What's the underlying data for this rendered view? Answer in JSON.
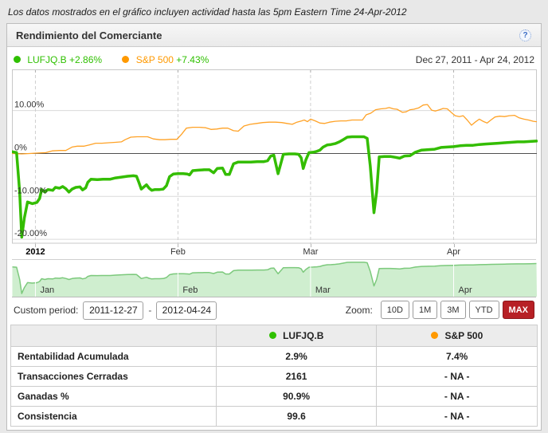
{
  "note": "Los datos mostrados en el gráfico incluyen actividad hasta las 5pm Eastern Time 24-Apr-2012",
  "panel": {
    "title": "Rendimiento del Comerciante",
    "help_icon": "?"
  },
  "colors": {
    "green": "#2fc000",
    "orange": "#ff9900",
    "line_green": "#33bd00",
    "line_orange": "#ffa226",
    "nav_fill": "#cfeecf",
    "nav_line": "#7cc97c",
    "active_button_red": "#b72025"
  },
  "legend": {
    "series1": {
      "label": "LUFJQ.B",
      "change": "+2.86%"
    },
    "series2": {
      "label": "S&P 500",
      "change": "+7.43%"
    },
    "date_range": "Dec 27, 2011 - Apr 24, 2012"
  },
  "chart_data": {
    "type": "line",
    "title": "Rendimiento del Comerciante",
    "x_axis": {
      "start": "Dec 27, 2011",
      "end": "Apr 24, 2012",
      "ticks": [
        {
          "label": "2012",
          "f": 0.044,
          "bold": true
        },
        {
          "label": "Feb",
          "f": 0.316
        },
        {
          "label": "Mar",
          "f": 0.569
        },
        {
          "label": "Apr",
          "f": 0.842
        }
      ]
    },
    "y_axis": {
      "unit": "%",
      "max": 19.6,
      "min": -21.1,
      "ticks": [
        {
          "label": "10.00%",
          "value": 10
        },
        {
          "label": "0%",
          "value": 0
        },
        {
          "label": "-10.00%",
          "value": -10
        },
        {
          "label": "-20.00%",
          "value": -20
        }
      ]
    },
    "series": [
      {
        "name": "LUFJQ.B",
        "color": "#33bd00",
        "width": 3.5,
        "final_return_pct": 2.86,
        "points": [
          [
            0.0,
            0.4
          ],
          [
            0.008,
            0.2
          ],
          [
            0.014,
            -9.0
          ],
          [
            0.018,
            -19.5
          ],
          [
            0.023,
            -15.0
          ],
          [
            0.029,
            -11.3
          ],
          [
            0.038,
            -11.7
          ],
          [
            0.047,
            -11.4
          ],
          [
            0.052,
            -10.5
          ],
          [
            0.056,
            -8.4
          ],
          [
            0.062,
            -9.0
          ],
          [
            0.068,
            -8.4
          ],
          [
            0.077,
            -8.6
          ],
          [
            0.082,
            -7.9
          ],
          [
            0.09,
            -8.1
          ],
          [
            0.096,
            -7.7
          ],
          [
            0.102,
            -8.2
          ],
          [
            0.108,
            -9.0
          ],
          [
            0.114,
            -8.3
          ],
          [
            0.121,
            -7.9
          ],
          [
            0.129,
            -7.8
          ],
          [
            0.134,
            -8.5
          ],
          [
            0.14,
            -8.0
          ],
          [
            0.144,
            -6.7
          ],
          [
            0.15,
            -6.0
          ],
          [
            0.162,
            -6.1
          ],
          [
            0.174,
            -6.0
          ],
          [
            0.187,
            -6.0
          ],
          [
            0.197,
            -5.7
          ],
          [
            0.208,
            -5.5
          ],
          [
            0.22,
            -5.3
          ],
          [
            0.231,
            -5.2
          ],
          [
            0.237,
            -5.3
          ],
          [
            0.241,
            -6.6
          ],
          [
            0.246,
            -8.3
          ],
          [
            0.252,
            -7.7
          ],
          [
            0.256,
            -7.3
          ],
          [
            0.261,
            -8.1
          ],
          [
            0.266,
            -8.6
          ],
          [
            0.272,
            -8.4
          ],
          [
            0.281,
            -8.4
          ],
          [
            0.288,
            -8.3
          ],
          [
            0.294,
            -7.5
          ],
          [
            0.3,
            -5.4
          ],
          [
            0.307,
            -4.8
          ],
          [
            0.316,
            -4.7
          ],
          [
            0.326,
            -4.7
          ],
          [
            0.334,
            -4.8
          ],
          [
            0.338,
            -5.0
          ],
          [
            0.344,
            -4.0
          ],
          [
            0.355,
            -3.9
          ],
          [
            0.366,
            -3.8
          ],
          [
            0.376,
            -3.8
          ],
          [
            0.384,
            -4.5
          ],
          [
            0.391,
            -3.5
          ],
          [
            0.401,
            -3.4
          ],
          [
            0.407,
            -4.9
          ],
          [
            0.414,
            -4.9
          ],
          [
            0.422,
            -2.4
          ],
          [
            0.431,
            -2.0
          ],
          [
            0.443,
            -2.0
          ],
          [
            0.455,
            -2.0
          ],
          [
            0.467,
            -1.9
          ],
          [
            0.48,
            -1.9
          ],
          [
            0.487,
            -1.7
          ],
          [
            0.493,
            -0.6
          ],
          [
            0.499,
            -0.4
          ],
          [
            0.507,
            -4.7
          ],
          [
            0.513,
            -2.0
          ],
          [
            0.517,
            -0.2
          ],
          [
            0.528,
            -0.1
          ],
          [
            0.539,
            -0.1
          ],
          [
            0.546,
            -0.2
          ],
          [
            0.551,
            -1.0
          ],
          [
            0.555,
            -3.5
          ],
          [
            0.56,
            -1.5
          ],
          [
            0.566,
            0.2
          ],
          [
            0.574,
            0.3
          ],
          [
            0.581,
            0.5
          ],
          [
            0.587,
            0.8
          ],
          [
            0.593,
            1.5
          ],
          [
            0.601,
            2.0
          ],
          [
            0.608,
            2.1
          ],
          [
            0.616,
            2.3
          ],
          [
            0.624,
            2.7
          ],
          [
            0.631,
            3.2
          ],
          [
            0.639,
            3.8
          ],
          [
            0.648,
            3.9
          ],
          [
            0.66,
            3.9
          ],
          [
            0.671,
            3.9
          ],
          [
            0.677,
            3.5
          ],
          [
            0.683,
            -3.0
          ],
          [
            0.69,
            -13.8
          ],
          [
            0.695,
            -9.0
          ],
          [
            0.7,
            -0.8
          ],
          [
            0.71,
            -0.7
          ],
          [
            0.721,
            -0.7
          ],
          [
            0.731,
            -0.9
          ],
          [
            0.739,
            -1.1
          ],
          [
            0.748,
            -0.6
          ],
          [
            0.759,
            -0.5
          ],
          [
            0.769,
            0.3
          ],
          [
            0.781,
            0.8
          ],
          [
            0.794,
            0.9
          ],
          [
            0.806,
            1.0
          ],
          [
            0.818,
            1.4
          ],
          [
            0.83,
            1.5
          ],
          [
            0.842,
            1.6
          ],
          [
            0.854,
            1.8
          ],
          [
            0.867,
            1.9
          ],
          [
            0.879,
            1.9
          ],
          [
            0.891,
            2.1
          ],
          [
            0.903,
            2.2
          ],
          [
            0.915,
            2.3
          ],
          [
            0.927,
            2.4
          ],
          [
            0.939,
            2.5
          ],
          [
            0.951,
            2.6
          ],
          [
            0.964,
            2.7
          ],
          [
            0.976,
            2.7
          ],
          [
            0.988,
            2.8
          ],
          [
            1.0,
            2.9
          ]
        ]
      },
      {
        "name": "S&P 500",
        "color": "#ffa226",
        "width": 1.3,
        "final_return_pct": 7.43,
        "points": [
          [
            0.0,
            0.0
          ],
          [
            0.018,
            -0.1
          ],
          [
            0.033,
            0.0
          ],
          [
            0.049,
            0.1
          ],
          [
            0.064,
            0.2
          ],
          [
            0.076,
            0.6
          ],
          [
            0.09,
            0.7
          ],
          [
            0.102,
            0.7
          ],
          [
            0.114,
            1.5
          ],
          [
            0.124,
            1.7
          ],
          [
            0.137,
            1.7
          ],
          [
            0.147,
            2.0
          ],
          [
            0.159,
            2.4
          ],
          [
            0.171,
            2.4
          ],
          [
            0.184,
            2.5
          ],
          [
            0.196,
            2.6
          ],
          [
            0.208,
            2.7
          ],
          [
            0.215,
            3.2
          ],
          [
            0.226,
            3.8
          ],
          [
            0.238,
            3.9
          ],
          [
            0.249,
            3.9
          ],
          [
            0.258,
            3.9
          ],
          [
            0.269,
            3.4
          ],
          [
            0.281,
            3.2
          ],
          [
            0.291,
            3.2
          ],
          [
            0.302,
            3.3
          ],
          [
            0.314,
            3.3
          ],
          [
            0.323,
            4.5
          ],
          [
            0.332,
            5.9
          ],
          [
            0.344,
            6.1
          ],
          [
            0.357,
            6.1
          ],
          [
            0.369,
            6.0
          ],
          [
            0.379,
            5.6
          ],
          [
            0.39,
            5.7
          ],
          [
            0.401,
            5.9
          ],
          [
            0.411,
            5.9
          ],
          [
            0.422,
            5.3
          ],
          [
            0.431,
            5.2
          ],
          [
            0.442,
            6.4
          ],
          [
            0.454,
            6.8
          ],
          [
            0.466,
            7.0
          ],
          [
            0.478,
            7.2
          ],
          [
            0.49,
            7.3
          ],
          [
            0.502,
            7.3
          ],
          [
            0.514,
            7.2
          ],
          [
            0.524,
            7.0
          ],
          [
            0.534,
            6.8
          ],
          [
            0.543,
            7.3
          ],
          [
            0.552,
            7.6
          ],
          [
            0.557,
            7.8
          ],
          [
            0.563,
            7.4
          ],
          [
            0.569,
            8.0
          ],
          [
            0.578,
            7.6
          ],
          [
            0.587,
            7.1
          ],
          [
            0.596,
            7.0
          ],
          [
            0.605,
            7.3
          ],
          [
            0.616,
            7.5
          ],
          [
            0.627,
            7.6
          ],
          [
            0.637,
            7.6
          ],
          [
            0.648,
            7.8
          ],
          [
            0.659,
            7.8
          ],
          [
            0.668,
            7.8
          ],
          [
            0.675,
            9.0
          ],
          [
            0.684,
            9.4
          ],
          [
            0.693,
            10.2
          ],
          [
            0.703,
            10.4
          ],
          [
            0.712,
            10.5
          ],
          [
            0.719,
            10.7
          ],
          [
            0.727,
            10.4
          ],
          [
            0.734,
            10.3
          ],
          [
            0.744,
            9.6
          ],
          [
            0.751,
            9.7
          ],
          [
            0.759,
            10.2
          ],
          [
            0.766,
            10.3
          ],
          [
            0.775,
            10.6
          ],
          [
            0.784,
            11.3
          ],
          [
            0.792,
            11.4
          ],
          [
            0.8,
            10.1
          ],
          [
            0.807,
            9.9
          ],
          [
            0.815,
            10.2
          ],
          [
            0.822,
            10.5
          ],
          [
            0.83,
            10.4
          ],
          [
            0.838,
            9.5
          ],
          [
            0.845,
            8.8
          ],
          [
            0.853,
            8.6
          ],
          [
            0.86,
            8.8
          ],
          [
            0.868,
            7.8
          ],
          [
            0.876,
            6.6
          ],
          [
            0.883,
            7.3
          ],
          [
            0.891,
            8.0
          ],
          [
            0.898,
            7.5
          ],
          [
            0.906,
            7.1
          ],
          [
            0.913,
            7.8
          ],
          [
            0.921,
            8.5
          ],
          [
            0.93,
            8.7
          ],
          [
            0.939,
            8.6
          ],
          [
            0.948,
            8.8
          ],
          [
            0.958,
            8.9
          ],
          [
            0.967,
            8.3
          ],
          [
            0.976,
            8.0
          ],
          [
            0.985,
            7.8
          ],
          [
            0.994,
            7.5
          ],
          [
            1.0,
            7.4
          ]
        ]
      }
    ],
    "navigator": {
      "series": "LUFJQ.B",
      "fill": "#cfeecf",
      "line": "#7cc97c",
      "y_max": 5.6,
      "y_min": -21.8,
      "months": [
        {
          "label": "Jan",
          "f": 0.044
        },
        {
          "label": "Feb",
          "f": 0.316
        },
        {
          "label": "Mar",
          "f": 0.569
        },
        {
          "label": "Apr",
          "f": 0.842
        }
      ]
    }
  },
  "controls": {
    "custom_period_label": "Custom period:",
    "date_from": "2011-12-27",
    "separator": "-",
    "date_to": "2012-04-24",
    "zoom_label": "Zoom:",
    "zoom_buttons": [
      {
        "label": "10D"
      },
      {
        "label": "1M"
      },
      {
        "label": "3M"
      },
      {
        "label": "YTD"
      },
      {
        "label": "MAX"
      }
    ],
    "zoom_active": "MAX"
  },
  "table": {
    "header": {
      "series1": "LUFJQ.B",
      "series2": "S&P 500"
    },
    "rows": [
      {
        "label": "Rentabilidad Acumulada",
        "lufjqb": "2.9%",
        "sp500": "7.4%"
      },
      {
        "label": "Transacciones Cerradas",
        "lufjqb": "2161",
        "sp500": "- NA -"
      },
      {
        "label": "Ganadas %",
        "lufjqb": "90.9%",
        "sp500": "- NA -"
      },
      {
        "label": "Consistencia",
        "lufjqb": "99.6",
        "sp500": "- NA -"
      }
    ]
  }
}
